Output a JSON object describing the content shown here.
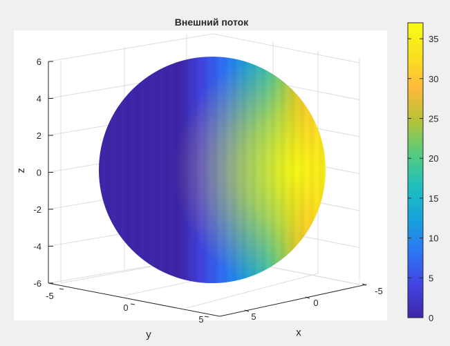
{
  "chart_data": {
    "type": "surface",
    "title": "Внешний поток",
    "shape": "sphere",
    "xlabel": "x",
    "ylabel": "y",
    "zlabel": "z",
    "x_ticks": [
      "-5",
      "0",
      "5"
    ],
    "y_ticks": [
      "-5",
      "0",
      "5"
    ],
    "z_ticks": [
      "-6",
      "-4",
      "-2",
      "0",
      "2",
      "4",
      "6"
    ],
    "zlim": [
      -6,
      6
    ],
    "grid": true,
    "colormap": "parula",
    "colorbar": {
      "range": [
        0,
        37
      ],
      "ticks": [
        "0",
        "5",
        "10",
        "15",
        "20",
        "25",
        "30",
        "35"
      ]
    },
    "color_stops": [
      "#3e26a8",
      "#4143e0",
      "#2d76f5",
      "#16a2db",
      "#1fbfbf",
      "#55cc7f",
      "#b4c338",
      "#ffb93a",
      "#f8e220",
      "#f9fb14"
    ]
  }
}
